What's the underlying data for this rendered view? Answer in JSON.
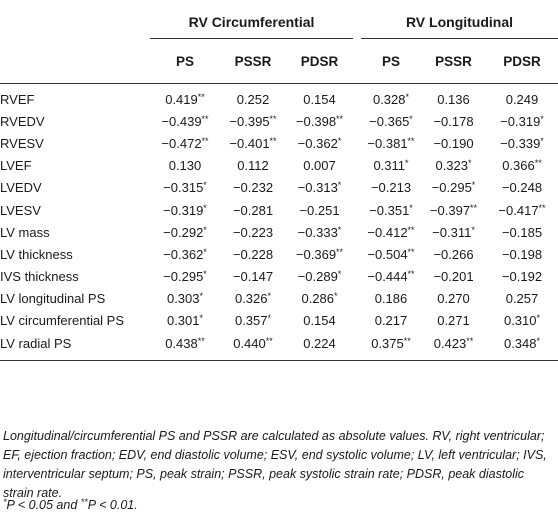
{
  "table": {
    "groups": [
      {
        "label": "RV Circumferential"
      },
      {
        "label": "RV Longitudinal"
      }
    ],
    "columns": [
      "PS",
      "PSSR",
      "PDSR",
      "PS",
      "PSSR",
      "PDSR"
    ],
    "rows": [
      {
        "label": "RVEF",
        "cells": [
          {
            "v": "0.419",
            "s": "**"
          },
          {
            "v": "0.252",
            "s": ""
          },
          {
            "v": "0.154",
            "s": ""
          },
          {
            "v": "0.328",
            "s": "*"
          },
          {
            "v": "0.136",
            "s": ""
          },
          {
            "v": "0.249",
            "s": ""
          }
        ]
      },
      {
        "label": "RVEDV",
        "cells": [
          {
            "v": "−0.439",
            "s": "**"
          },
          {
            "v": "−0.395",
            "s": "**"
          },
          {
            "v": "−0.398",
            "s": "**"
          },
          {
            "v": "−0.365",
            "s": "*"
          },
          {
            "v": "−0.178",
            "s": ""
          },
          {
            "v": "−0.319",
            "s": "*"
          }
        ]
      },
      {
        "label": "RVESV",
        "cells": [
          {
            "v": "−0.472",
            "s": "**"
          },
          {
            "v": "−0.401",
            "s": "**"
          },
          {
            "v": "−0.362",
            "s": "*"
          },
          {
            "v": "−0.381",
            "s": "**"
          },
          {
            "v": "−0.190",
            "s": ""
          },
          {
            "v": "−0.339",
            "s": "*"
          }
        ]
      },
      {
        "label": "LVEF",
        "cells": [
          {
            "v": "0.130",
            "s": ""
          },
          {
            "v": "0.112",
            "s": ""
          },
          {
            "v": "0.007",
            "s": ""
          },
          {
            "v": "0.311",
            "s": "*"
          },
          {
            "v": "0.323",
            "s": "*"
          },
          {
            "v": "0.366",
            "s": "**"
          }
        ]
      },
      {
        "label": "LVEDV",
        "cells": [
          {
            "v": "−0.315",
            "s": "*"
          },
          {
            "v": "−0.232",
            "s": ""
          },
          {
            "v": "−0.313",
            "s": "*"
          },
          {
            "v": "−0.213",
            "s": ""
          },
          {
            "v": "−0.295",
            "s": "*"
          },
          {
            "v": "−0.248",
            "s": ""
          }
        ]
      },
      {
        "label": "LVESV",
        "cells": [
          {
            "v": "−0.319",
            "s": "*"
          },
          {
            "v": "−0.281",
            "s": ""
          },
          {
            "v": "−0.251",
            "s": ""
          },
          {
            "v": "−0.351",
            "s": "*"
          },
          {
            "v": "−0.397",
            "s": "**"
          },
          {
            "v": "−0.417",
            "s": "**"
          }
        ]
      },
      {
        "label": "LV mass",
        "cells": [
          {
            "v": "−0.292",
            "s": "*"
          },
          {
            "v": "−0.223",
            "s": ""
          },
          {
            "v": "−0.333",
            "s": "*"
          },
          {
            "v": "−0.412",
            "s": "**"
          },
          {
            "v": "−0.311",
            "s": "*"
          },
          {
            "v": "−0.185",
            "s": ""
          }
        ]
      },
      {
        "label": "LV thickness",
        "cells": [
          {
            "v": "−0.362",
            "s": "*"
          },
          {
            "v": "−0.228",
            "s": ""
          },
          {
            "v": "−0.369",
            "s": "**"
          },
          {
            "v": "−0.504",
            "s": "**"
          },
          {
            "v": "−0.266",
            "s": ""
          },
          {
            "v": "−0.198",
            "s": ""
          }
        ]
      },
      {
        "label": "IVS thickness",
        "cells": [
          {
            "v": "−0.295",
            "s": "*"
          },
          {
            "v": "−0.147",
            "s": ""
          },
          {
            "v": "−0.289",
            "s": "*"
          },
          {
            "v": "−0.444",
            "s": "**"
          },
          {
            "v": "−0.201",
            "s": ""
          },
          {
            "v": "−0.192",
            "s": ""
          }
        ]
      },
      {
        "label": "LV longitudinal PS",
        "cells": [
          {
            "v": "0.303",
            "s": "*"
          },
          {
            "v": "0.326",
            "s": "*"
          },
          {
            "v": "0.286",
            "s": "*"
          },
          {
            "v": "0.186",
            "s": ""
          },
          {
            "v": "0.270",
            "s": ""
          },
          {
            "v": "0.257",
            "s": ""
          }
        ]
      },
      {
        "label": "LV circumferential PS",
        "cells": [
          {
            "v": "0.301",
            "s": "*"
          },
          {
            "v": "0.357",
            "s": "*"
          },
          {
            "v": "0.154",
            "s": ""
          },
          {
            "v": "0.217",
            "s": ""
          },
          {
            "v": "0.271",
            "s": ""
          },
          {
            "v": "0.310",
            "s": "*"
          }
        ]
      },
      {
        "label": "LV radial PS",
        "cells": [
          {
            "v": "0.438",
            "s": "**"
          },
          {
            "v": "0.440",
            "s": "**"
          },
          {
            "v": "0.224",
            "s": ""
          },
          {
            "v": "0.375",
            "s": "**"
          },
          {
            "v": "0.423",
            "s": "**"
          },
          {
            "v": "0.348",
            "s": "*"
          }
        ]
      }
    ]
  },
  "footnote": "Longitudinal/circumferential PS and PSSR are calculated as absolute values. RV, right ventricular; EF, ejection fraction; EDV, end diastolic volume; ESV, end systolic volume; LV, left ventricular; IVS, interventricular septum; PS, peak strain; PSSR, peak systolic strain rate; PDSR, peak diastolic strain rate.",
  "significance": {
    "sym1": "*",
    "text1": "P < 0.05 and ",
    "sym2": "**",
    "text2": "P < 0.01."
  }
}
